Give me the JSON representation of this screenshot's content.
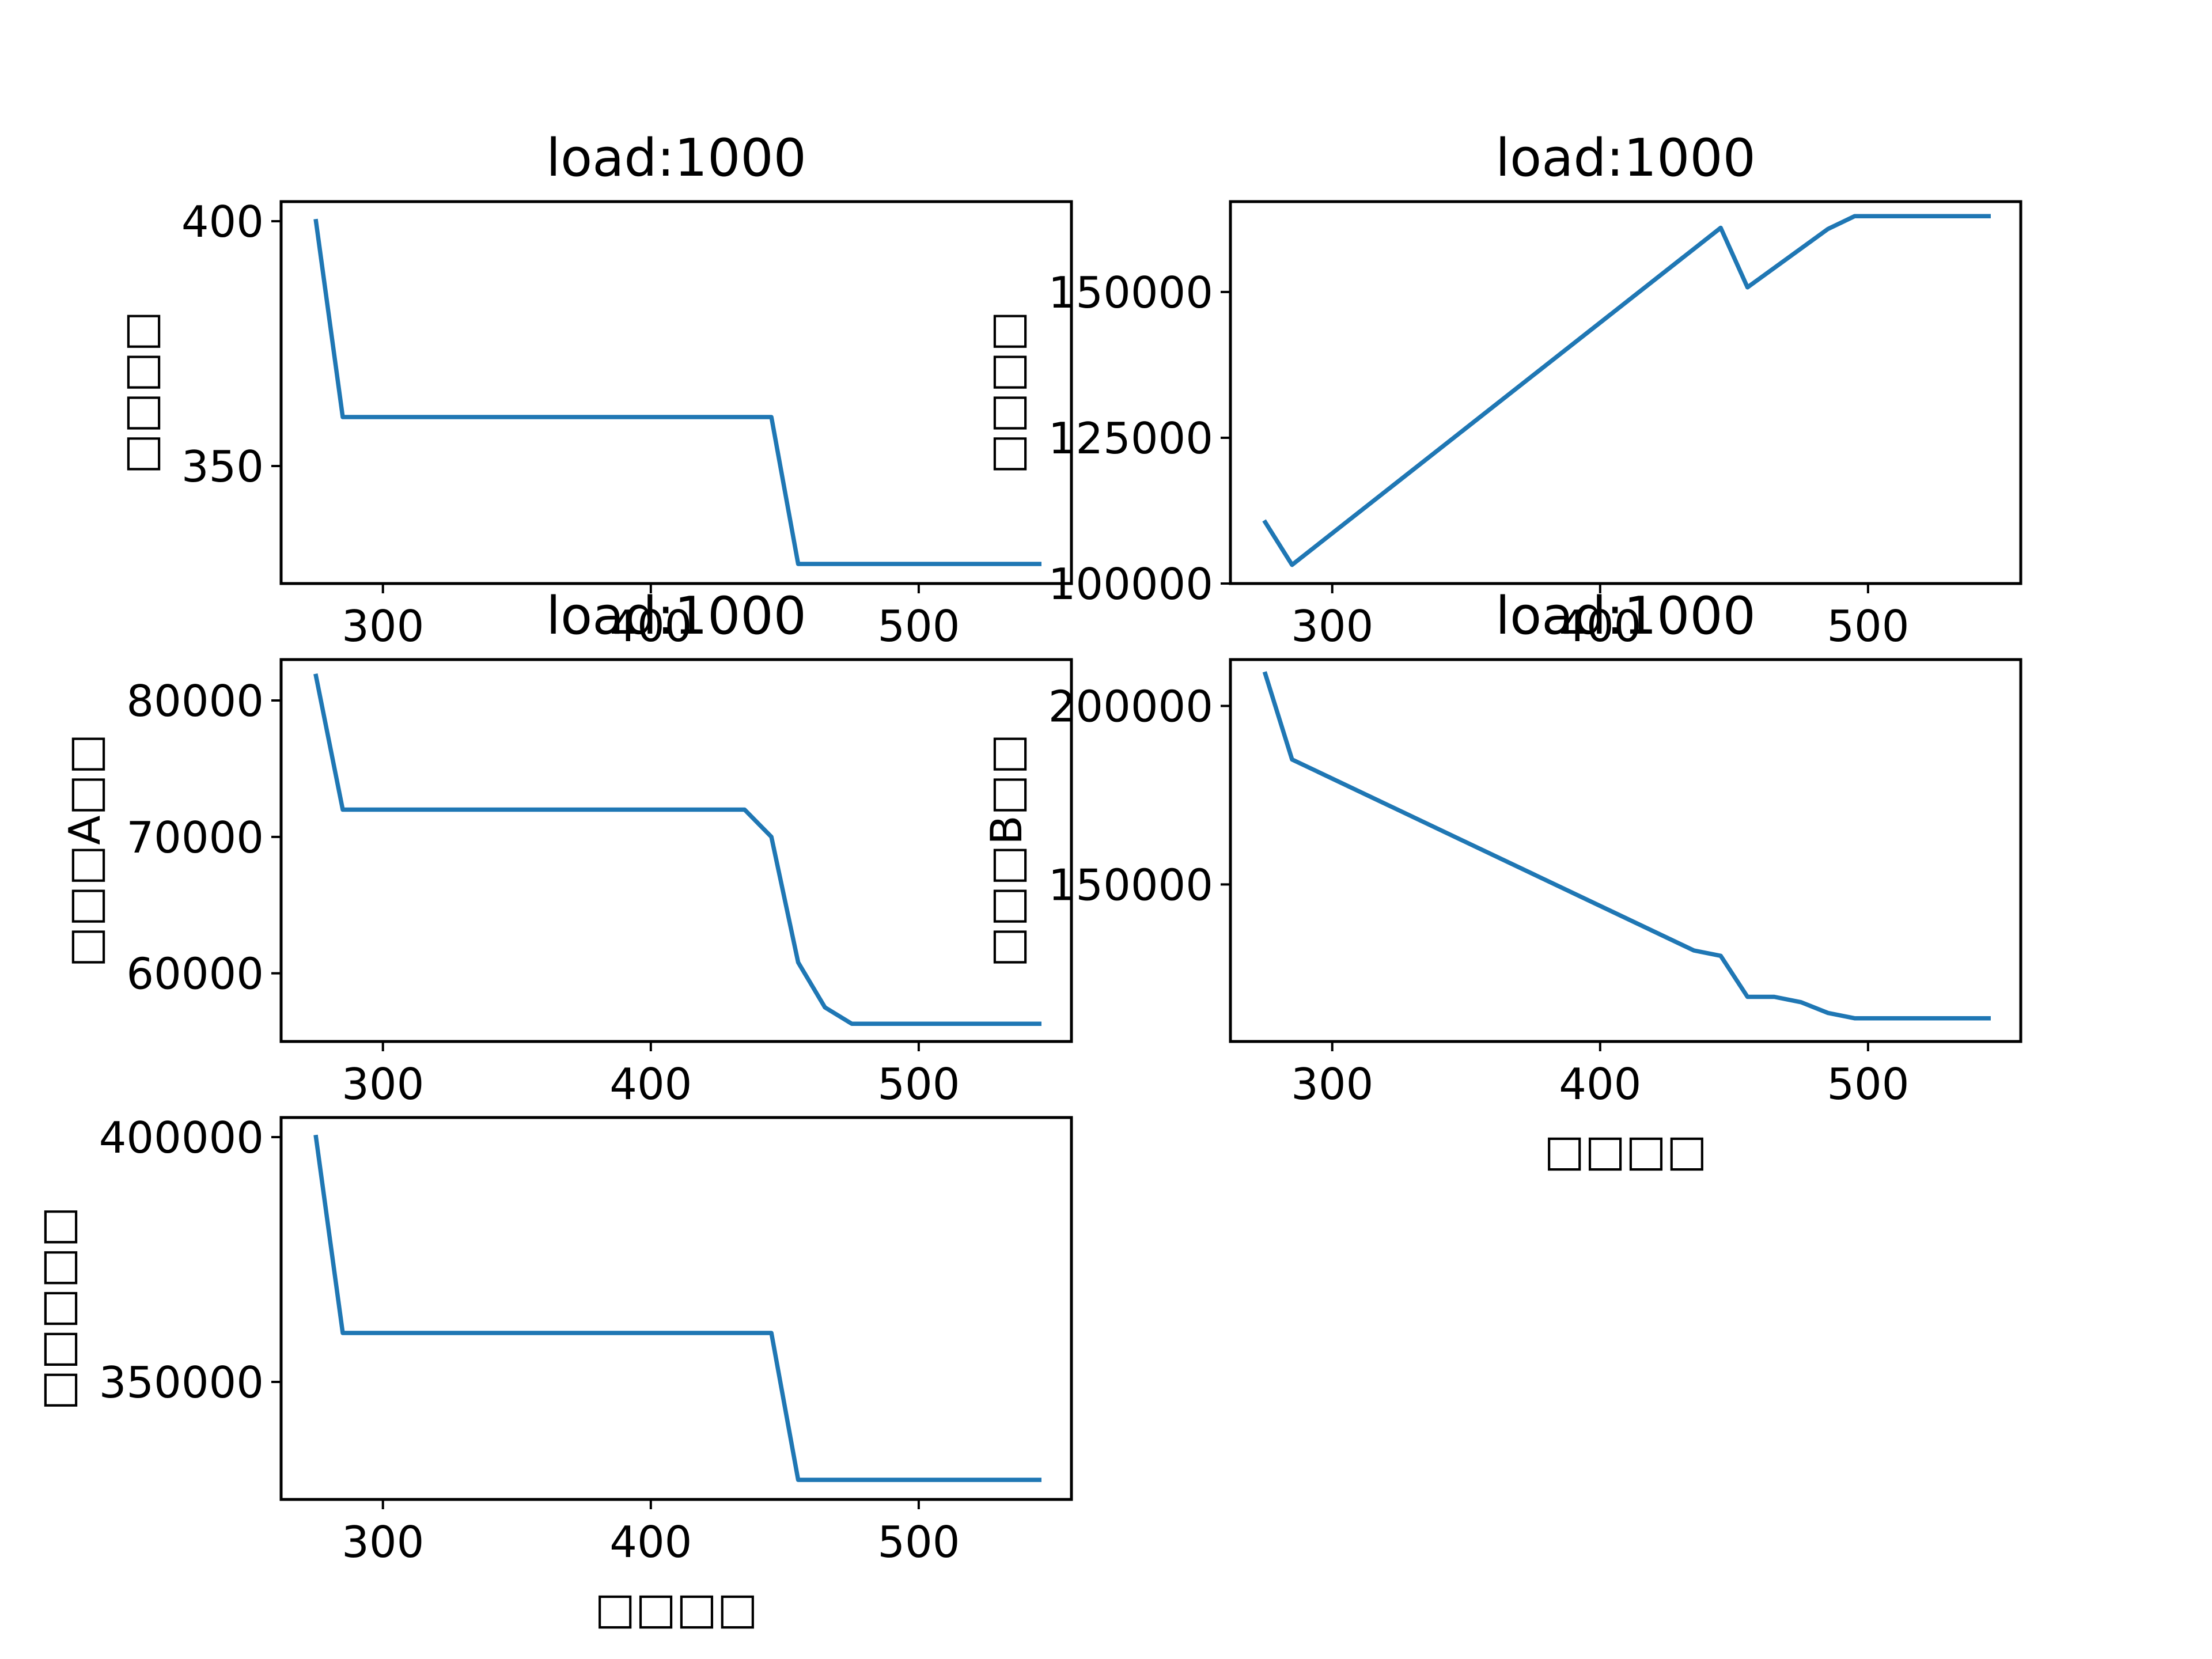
{
  "figure": {
    "background": "#ffffff",
    "line_color": "#1f77b4"
  },
  "chart_data": [
    {
      "type": "line",
      "title": "load:1000",
      "xlabel": "",
      "ylabel": "□□□□",
      "xlim": [
        262,
        557
      ],
      "ylim": [
        326,
        404
      ],
      "xticks": [
        300,
        400,
        500
      ],
      "yticks": [
        350,
        400
      ],
      "grid": false,
      "series": [
        {
          "x": [
            275,
            285,
            445,
            455,
            545
          ],
          "y": [
            400,
            360,
            360,
            330,
            330
          ]
        }
      ]
    },
    {
      "type": "line",
      "title": "load:1000",
      "xlabel": "",
      "ylabel": "□□□□",
      "xlim": [
        262,
        557
      ],
      "ylim": [
        100000,
        165500
      ],
      "xticks": [
        300,
        400,
        500
      ],
      "yticks": [
        100000,
        125000,
        150000
      ],
      "grid": false,
      "series": [
        {
          "x": [
            275,
            285,
            445,
            455,
            485,
            495,
            545
          ],
          "y": [
            110500,
            103200,
            161000,
            150800,
            160800,
            163000,
            163000
          ]
        }
      ]
    },
    {
      "type": "line",
      "title": "load:1000",
      "xlabel": "",
      "ylabel": "□□□A□□",
      "xlim": [
        262,
        557
      ],
      "ylim": [
        55000,
        83000
      ],
      "xticks": [
        300,
        400,
        500
      ],
      "yticks": [
        60000,
        70000,
        80000
      ],
      "grid": false,
      "series": [
        {
          "x": [
            275,
            285,
            435,
            445,
            455,
            465,
            475,
            485,
            545
          ],
          "y": [
            81800,
            72000,
            72000,
            70000,
            60800,
            57500,
            56300,
            56300,
            56300
          ]
        }
      ]
    },
    {
      "type": "line",
      "title": "load:1000",
      "xlabel": "□□□□",
      "ylabel": "□□□B□□",
      "xlim": [
        262,
        557
      ],
      "ylim": [
        106000,
        213000
      ],
      "xticks": [
        300,
        400,
        500
      ],
      "yticks": [
        150000,
        200000
      ],
      "grid": false,
      "series": [
        {
          "x": [
            275,
            285,
            435,
            445,
            455,
            465,
            475,
            485,
            495,
            545
          ],
          "y": [
            209000,
            185000,
            131500,
            130000,
            118500,
            118500,
            117000,
            114000,
            112500,
            112500
          ]
        }
      ]
    },
    {
      "type": "line",
      "title": "",
      "xlabel": "□□□□",
      "ylabel": "□□□□□",
      "xlim": [
        262,
        557
      ],
      "ylim": [
        326000,
        404000
      ],
      "xticks": [
        300,
        400,
        500
      ],
      "yticks": [
        350000,
        400000
      ],
      "grid": false,
      "series": [
        {
          "x": [
            275,
            285,
            445,
            455,
            545
          ],
          "y": [
            400000,
            360000,
            360000,
            330000,
            330000
          ]
        }
      ]
    }
  ]
}
